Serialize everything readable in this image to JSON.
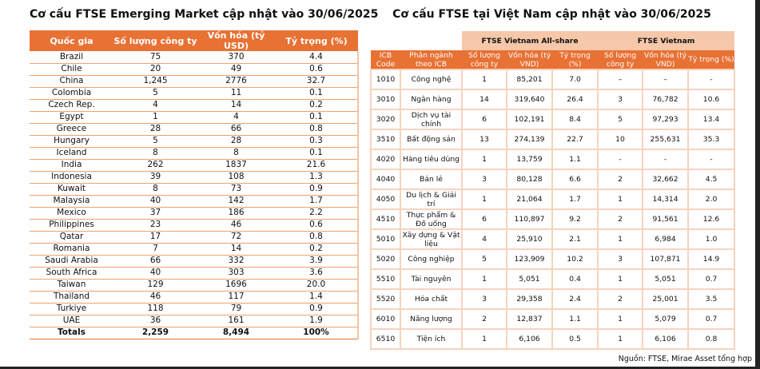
{
  "left": {
    "title": "Cơ cấu FTSE Emerging Market cập nhật vào 30/06/2025",
    "headers": [
      "Quốc gia",
      "Số lượng công ty",
      "Vốn hóa (tỷ USD)",
      "Tỷ trọng (%)"
    ],
    "rows": [
      [
        "Brazil",
        "75",
        "370",
        "4.4"
      ],
      [
        "Chile",
        "20",
        "49",
        "0.6"
      ],
      [
        "China",
        "1,245",
        "2776",
        "32.7"
      ],
      [
        "Colombia",
        "5",
        "11",
        "0.1"
      ],
      [
        "Czech Rep.",
        "4",
        "14",
        "0.2"
      ],
      [
        "Egypt",
        "1",
        "4",
        "0.1"
      ],
      [
        "Greece",
        "28",
        "66",
        "0.8"
      ],
      [
        "Hungary",
        "5",
        "28",
        "0.3"
      ],
      [
        "Iceland",
        "8",
        "8",
        "0.1"
      ],
      [
        "India",
        "262",
        "1837",
        "21.6"
      ],
      [
        "Indonesia",
        "39",
        "108",
        "1.3"
      ],
      [
        "Kuwait",
        "8",
        "73",
        "0.9"
      ],
      [
        "Malaysia",
        "40",
        "142",
        "1.7"
      ],
      [
        "Mexico",
        "37",
        "186",
        "2.2"
      ],
      [
        "Philippines",
        "23",
        "46",
        "0.6"
      ],
      [
        "Qatar",
        "17",
        "72",
        "0.8"
      ],
      [
        "Romania",
        "7",
        "14",
        "0.2"
      ],
      [
        "Saudi Arabia",
        "66",
        "332",
        "3.9"
      ],
      [
        "South Africa",
        "40",
        "303",
        "3.6"
      ],
      [
        "Taiwan",
        "129",
        "1696",
        "20.0"
      ],
      [
        "Thailand",
        "46",
        "117",
        "1.4"
      ],
      [
        "Turkiye",
        "118",
        "79",
        "0.9"
      ],
      [
        "UAE",
        "36",
        "161",
        "1.9"
      ]
    ],
    "totals": [
      "Totals",
      "2,259",
      "8,494",
      "100%"
    ]
  },
  "right": {
    "title": "Cơ cấu FTSE tại Việt Nam cập nhật vào 30/06/2025",
    "groups": [
      "FTSE Vietnam All-share",
      "FTSE Vietnam"
    ],
    "headers": [
      "ICB Code",
      "Phân ngành theo ICB",
      "Số lượng công ty",
      "Vốn hóa (tỷ VND)",
      "Tỷ trọng (%)",
      "Số lượng công ty",
      "Vốn hóa (tỷ VND)",
      "Tỷ trọng (%)"
    ],
    "rows": [
      [
        "1010",
        "Công nghệ",
        "1",
        "85,201",
        "7.0",
        "–",
        "–",
        "-"
      ],
      [
        "3010",
        "Ngân hàng",
        "14",
        "319,640",
        "26.4",
        "3",
        "76,782",
        "10.6"
      ],
      [
        "3020",
        "Dịch vụ tài chính",
        "6",
        "102,191",
        "8.4",
        "5",
        "97,293",
        "13.4"
      ],
      [
        "3510",
        "Bất động sản",
        "13",
        "274,139",
        "22.7",
        "10",
        "255,631",
        "35.3"
      ],
      [
        "4020",
        "Hàng tiêu dùng",
        "1",
        "13,759",
        "1.1",
        "-",
        "-",
        "-"
      ],
      [
        "4040",
        "Bán lẻ",
        "3",
        "80,128",
        "6.6",
        "2",
        "32,662",
        "4.5"
      ],
      [
        "4050",
        "Du lịch & Giải trí",
        "1",
        "21,064",
        "1.7",
        "1",
        "14,314",
        "2.0"
      ],
      [
        "4510",
        "Thực phẩm & Đồ uống",
        "6",
        "110,897",
        "9.2",
        "2",
        "91,561",
        "12.6"
      ],
      [
        "5010",
        "Xây dựng & Vật liệu",
        "4",
        "25,910",
        "2.1",
        "1",
        "6,984",
        "1.0"
      ],
      [
        "5020",
        "Công nghiệp",
        "5",
        "123,909",
        "10.2",
        "3",
        "107,871",
        "14.9"
      ],
      [
        "5510",
        "Tài nguyên",
        "1",
        "5,051",
        "0.4",
        "1",
        "5,051",
        "0.7"
      ],
      [
        "5520",
        "Hóa chất",
        "3",
        "29,358",
        "2.4",
        "2",
        "25,001",
        "3.5"
      ],
      [
        "6010",
        "Năng lượng",
        "2",
        "12,837",
        "1.1",
        "1",
        "5,079",
        "0.7"
      ],
      [
        "6510",
        "Tiện ích",
        "1",
        "6,106",
        "0.5",
        "1",
        "6,106",
        "0.8"
      ]
    ],
    "source": "Nguồn: FTSE, Mirae Asset tổng hợp"
  }
}
